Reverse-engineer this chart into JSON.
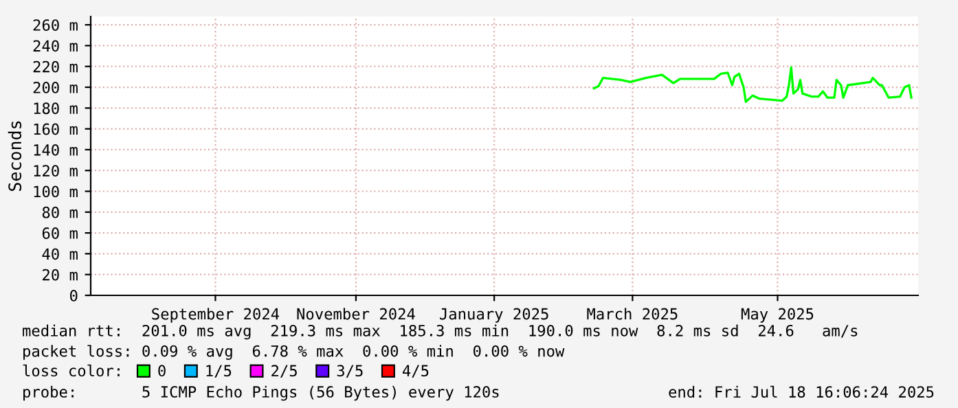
{
  "chart_data": {
    "type": "line",
    "ylabel": "Seconds",
    "legend_title": "loss color:",
    "x": [
      "2025-02-25",
      "2025-02-27",
      "2025-03-01",
      "2025-03-09",
      "2025-03-13",
      "2025-03-20",
      "2025-03-27",
      "2025-04-01",
      "2025-04-04",
      "2025-04-19",
      "2025-04-22",
      "2025-04-25",
      "2025-04-27",
      "2025-04-28",
      "2025-04-30",
      "2025-05-02",
      "2025-05-03",
      "2025-05-06",
      "2025-05-09",
      "2025-05-19",
      "2025-05-21",
      "2025-05-22",
      "2025-05-23",
      "2025-05-24",
      "2025-05-26",
      "2025-05-27",
      "2025-05-28",
      "2025-06-01",
      "2025-06-04",
      "2025-06-06",
      "2025-06-08",
      "2025-06-11",
      "2025-06-12",
      "2025-06-14",
      "2025-06-15",
      "2025-06-17",
      "2025-06-27",
      "2025-06-28",
      "2025-07-01",
      "2025-07-02",
      "2025-07-05",
      "2025-07-10",
      "2025-07-12",
      "2025-07-14",
      "2025-07-15"
    ],
    "series": [
      {
        "name": "0",
        "color": "#00ff00",
        "values": [
          199,
          201,
          209,
          207,
          205,
          209,
          212,
          204,
          208,
          208,
          213,
          214,
          202,
          210,
          213,
          200,
          186,
          192,
          189,
          187,
          191,
          202,
          219,
          194,
          198,
          207,
          194,
          191,
          191,
          196,
          190,
          190,
          207,
          202,
          190,
          202,
          205,
          209,
          202,
          202,
          190,
          191,
          200,
          202,
          190
        ]
      },
      {
        "name": "1/5",
        "color": "#00b8ff",
        "values": [
          null,
          null,
          null,
          null,
          null,
          null,
          null,
          null,
          null,
          null,
          null,
          null,
          null,
          null,
          null,
          null,
          null,
          null,
          null,
          null,
          null,
          null,
          null,
          null,
          null,
          null,
          null,
          null,
          null,
          null,
          null,
          null,
          null,
          null,
          null,
          null,
          null,
          null,
          null,
          null,
          null,
          null,
          null,
          null,
          null
        ]
      },
      {
        "name": "2/5",
        "color": "#ff00ff",
        "values": [
          null,
          null,
          null,
          null,
          null,
          null,
          null,
          null,
          null,
          null,
          null,
          null,
          null,
          null,
          null,
          null,
          null,
          null,
          null,
          null,
          null,
          null,
          null,
          null,
          null,
          null,
          null,
          null,
          null,
          null,
          null,
          null,
          null,
          null,
          null,
          null,
          null,
          null,
          null,
          null,
          null,
          null,
          null,
          null,
          null
        ]
      },
      {
        "name": "3/5",
        "color": "#6000ff",
        "values": [
          null,
          null,
          null,
          null,
          null,
          null,
          null,
          null,
          null,
          null,
          null,
          null,
          null,
          null,
          null,
          null,
          null,
          null,
          null,
          null,
          null,
          null,
          null,
          null,
          null,
          null,
          null,
          null,
          null,
          null,
          null,
          null,
          null,
          null,
          null,
          null,
          null,
          null,
          null,
          null,
          null,
          null,
          null,
          null,
          null
        ]
      },
      {
        "name": "4/5",
        "color": "#ff0000",
        "values": [
          null,
          null,
          null,
          null,
          null,
          null,
          null,
          null,
          null,
          null,
          null,
          null,
          null,
          null,
          null,
          null,
          null,
          null,
          null,
          null,
          null,
          null,
          null,
          null,
          null,
          null,
          null,
          null,
          null,
          null,
          null,
          null,
          null,
          null,
          null,
          null,
          null,
          null,
          null,
          null,
          null,
          null,
          null,
          null,
          null
        ]
      }
    ],
    "xlim": [
      "2024-07-18",
      "2025-07-18"
    ],
    "xticks": [
      {
        "value": "2024-09-11",
        "label": "September 2024"
      },
      {
        "value": "2024-11-12",
        "label": "November 2024"
      },
      {
        "value": "2025-01-12",
        "label": "January 2025"
      },
      {
        "value": "2025-03-14",
        "label": "March 2025"
      },
      {
        "value": "2025-05-17",
        "label": "May 2025"
      }
    ],
    "ylim": [
      0,
      268
    ],
    "yticks": [
      0,
      {
        "value": 20,
        "label": "20 m"
      },
      {
        "value": 40,
        "label": "40 m"
      },
      {
        "value": 60,
        "label": "60 m"
      },
      {
        "value": 80,
        "label": "80 m"
      },
      {
        "value": 100,
        "label": "100 m"
      },
      {
        "value": 120,
        "label": "120 m"
      },
      {
        "value": 140,
        "label": "140 m"
      },
      {
        "value": 160,
        "label": "160 m"
      },
      {
        "value": 180,
        "label": "180 m"
      },
      {
        "value": 200,
        "label": "200 m"
      },
      {
        "value": 220,
        "label": "220 m"
      },
      {
        "value": 240,
        "label": "240 m"
      },
      {
        "value": 260,
        "label": "260 m"
      }
    ],
    "grid": true,
    "legend": "bottom",
    "annotations": [
      "median rtt:  201.0 ms avg  219.3 ms max  185.3 ms min  190.0 ms now  8.2 ms sd  24.6   am/s",
      "packet loss: 0.09 % avg  6.78 % max  0.00 % min  0.00 % now",
      "probe:       5 ICMP Echo Pings (56 Bytes) every 120s",
      "end: Fri Jul 18 16:06:24 2025"
    ]
  }
}
